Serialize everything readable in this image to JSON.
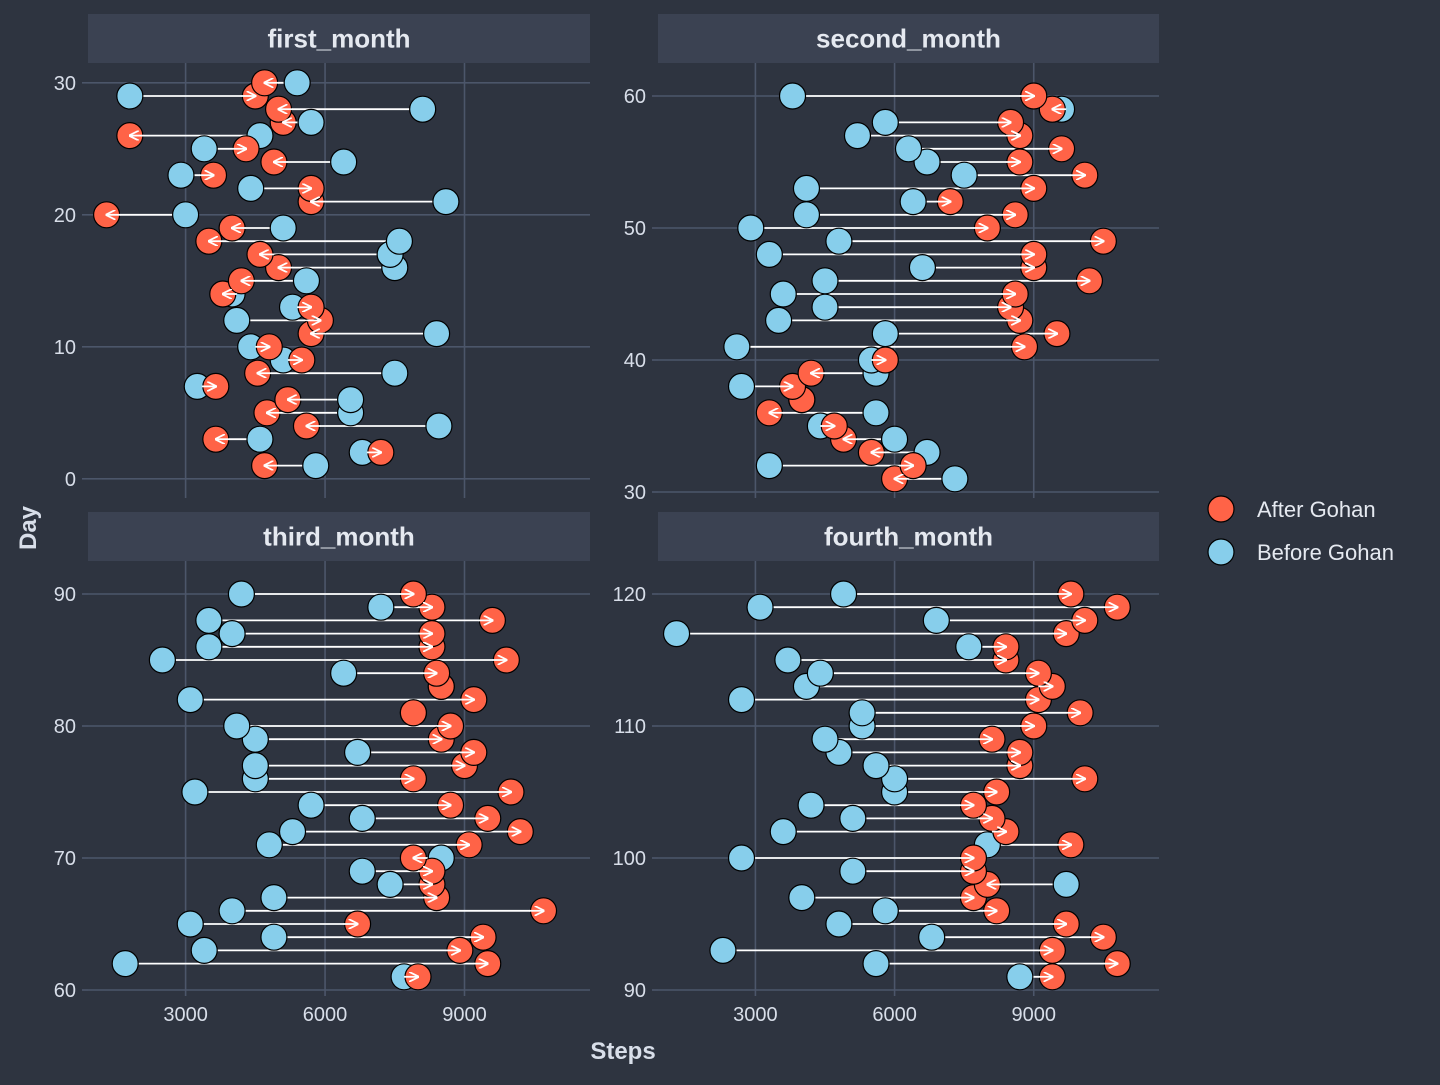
{
  "chart_data": {
    "type": "dumbbell-arrow",
    "xlabel": "Steps",
    "ylabel": "Day",
    "xlim": [
      900,
      11700
    ],
    "x_ticks": [
      3000,
      6000,
      9000
    ],
    "x_tick_labels": [
      "3000",
      "6000",
      "9000"
    ],
    "grid": true,
    "legend": {
      "position": "right",
      "entries": [
        {
          "label": "After Gohan",
          "color": "#ff6347"
        },
        {
          "label": "Before Gohan",
          "color": "#87ceeb"
        }
      ]
    },
    "colors": {
      "background": "#2e3440",
      "strip": "#3b4252",
      "grid": "#4c566a",
      "arrow": "#ffffff",
      "point_outline": "#000000"
    },
    "panels": [
      {
        "title": "first_month",
        "ylim": [
          -1,
          31.5
        ],
        "y_ticks": [
          0,
          10,
          20,
          30
        ],
        "y_tick_labels": [
          "0",
          "10",
          "20",
          "30"
        ],
        "points": [
          {
            "day": 1,
            "before": 5800,
            "after": 4700
          },
          {
            "day": 2,
            "before": 6800,
            "after": 7200
          },
          {
            "day": 3,
            "before": 4600,
            "after": 3650
          },
          {
            "day": 4,
            "before": 8450,
            "after": 5600
          },
          {
            "day": 5,
            "before": 6550,
            "after": 4750
          },
          {
            "day": 6,
            "before": 6550,
            "after": 5200
          },
          {
            "day": 7,
            "before": 3250,
            "after": 3650
          },
          {
            "day": 8,
            "before": 7500,
            "after": 4550
          },
          {
            "day": 9,
            "before": 5100,
            "after": 5500
          },
          {
            "day": 10,
            "before": 4400,
            "after": 4800
          },
          {
            "day": 11,
            "before": 8400,
            "after": 5700
          },
          {
            "day": 12,
            "before": 4100,
            "after": 5900
          },
          {
            "day": 13,
            "before": 5300,
            "after": 5700
          },
          {
            "day": 14,
            "before": 4000,
            "after": 3800
          },
          {
            "day": 15,
            "before": 5600,
            "after": 4200
          },
          {
            "day": 16,
            "before": 7500,
            "after": 5000
          },
          {
            "day": 17,
            "before": 7400,
            "after": 4600
          },
          {
            "day": 18,
            "before": 7600,
            "after": 3500
          },
          {
            "day": 19,
            "before": 5100,
            "after": 4000
          },
          {
            "day": 20,
            "before": 3000,
            "after": 1300
          },
          {
            "day": 21,
            "before": 8600,
            "after": 5700
          },
          {
            "day": 22,
            "before": 4400,
            "after": 5700
          },
          {
            "day": 23,
            "before": 2900,
            "after": 3600
          },
          {
            "day": 24,
            "before": 6400,
            "after": 4900
          },
          {
            "day": 25,
            "before": 3400,
            "after": 4300
          },
          {
            "day": 26,
            "before": 4600,
            "after": 1800
          },
          {
            "day": 27,
            "before": 5700,
            "after": 5100
          },
          {
            "day": 28,
            "before": 8100,
            "after": 5000
          },
          {
            "day": 29,
            "before": 1800,
            "after": 4500
          },
          {
            "day": 30,
            "before": 5400,
            "after": 4700
          }
        ]
      },
      {
        "title": "second_month",
        "ylim": [
          30,
          62.5
        ],
        "y_ticks": [
          30,
          40,
          50,
          60
        ],
        "y_tick_labels": [
          "30",
          "40",
          "50",
          "60"
        ],
        "points": [
          {
            "day": 31,
            "before": 7300,
            "after": 6000
          },
          {
            "day": 32,
            "before": 3300,
            "after": 6400
          },
          {
            "day": 33,
            "before": 6700,
            "after": 5500
          },
          {
            "day": 34,
            "before": 6000,
            "after": 4900
          },
          {
            "day": 35,
            "before": 4400,
            "after": 4700
          },
          {
            "day": 36,
            "before": 5600,
            "after": 3300
          },
          {
            "day": 37,
            "before": 4000,
            "after": 4000
          },
          {
            "day": 38,
            "before": 2700,
            "after": 3800
          },
          {
            "day": 39,
            "before": 5600,
            "after": 4200
          },
          {
            "day": 40,
            "before": 5500,
            "after": 5800
          },
          {
            "day": 41,
            "before": 2600,
            "after": 8800
          },
          {
            "day": 42,
            "before": 5800,
            "after": 9500
          },
          {
            "day": 43,
            "before": 3500,
            "after": 8700
          },
          {
            "day": 44,
            "before": 4500,
            "after": 8500
          },
          {
            "day": 45,
            "before": 3600,
            "after": 8600
          },
          {
            "day": 46,
            "before": 4500,
            "after": 10200
          },
          {
            "day": 47,
            "before": 6600,
            "after": 9000
          },
          {
            "day": 48,
            "before": 3300,
            "after": 9000
          },
          {
            "day": 49,
            "before": 4800,
            "after": 10500
          },
          {
            "day": 50,
            "before": 2900,
            "after": 8000
          },
          {
            "day": 51,
            "before": 4100,
            "after": 8600
          },
          {
            "day": 52,
            "before": 6400,
            "after": 7200
          },
          {
            "day": 53,
            "before": 4100,
            "after": 9000
          },
          {
            "day": 54,
            "before": 7500,
            "after": 10100
          },
          {
            "day": 55,
            "before": 6700,
            "after": 8700
          },
          {
            "day": 56,
            "before": 6300,
            "after": 9600
          },
          {
            "day": 57,
            "before": 5200,
            "after": 8700
          },
          {
            "day": 58,
            "before": 5800,
            "after": 8500
          },
          {
            "day": 59,
            "before": 9600,
            "after": 9400
          },
          {
            "day": 60,
            "before": 3800,
            "after": 9000
          }
        ]
      },
      {
        "title": "third_month",
        "ylim": [
          60,
          92.5
        ],
        "y_ticks": [
          60,
          70,
          80,
          90
        ],
        "y_tick_labels": [
          "60",
          "70",
          "80",
          "90"
        ],
        "points": [
          {
            "day": 61,
            "before": 7700,
            "after": 8000
          },
          {
            "day": 62,
            "before": 1700,
            "after": 9500
          },
          {
            "day": 63,
            "before": 3400,
            "after": 8900
          },
          {
            "day": 64,
            "before": 4900,
            "after": 9400
          },
          {
            "day": 65,
            "before": 3100,
            "after": 6700
          },
          {
            "day": 66,
            "before": 4000,
            "after": 10700
          },
          {
            "day": 67,
            "before": 4900,
            "after": 8400
          },
          {
            "day": 68,
            "before": 7400,
            "after": 8300
          },
          {
            "day": 69,
            "before": 6800,
            "after": 8300
          },
          {
            "day": 70,
            "before": 8500,
            "after": 7900
          },
          {
            "day": 71,
            "before": 4800,
            "after": 9100
          },
          {
            "day": 72,
            "before": 5300,
            "after": 10200
          },
          {
            "day": 73,
            "before": 6800,
            "after": 9500
          },
          {
            "day": 74,
            "before": 5700,
            "after": 8700
          },
          {
            "day": 75,
            "before": 3200,
            "after": 10000
          },
          {
            "day": 76,
            "before": 4500,
            "after": 7900
          },
          {
            "day": 77,
            "before": 4500,
            "after": 9000
          },
          {
            "day": 78,
            "before": 6700,
            "after": 9200
          },
          {
            "day": 79,
            "before": 4500,
            "after": 8500
          },
          {
            "day": 80,
            "before": 4100,
            "after": 8700
          },
          {
            "day": 81,
            "before": 7900,
            "after": 7900
          },
          {
            "day": 82,
            "before": 3100,
            "after": 9200
          },
          {
            "day": 83,
            "before": 8500,
            "after": 8500
          },
          {
            "day": 84,
            "before": 6400,
            "after": 8400
          },
          {
            "day": 85,
            "before": 2500,
            "after": 9900
          },
          {
            "day": 86,
            "before": 3500,
            "after": 8300
          },
          {
            "day": 87,
            "before": 4000,
            "after": 8300
          },
          {
            "day": 88,
            "before": 3500,
            "after": 9600
          },
          {
            "day": 89,
            "before": 7200,
            "after": 8300
          },
          {
            "day": 90,
            "before": 4200,
            "after": 7900
          }
        ]
      },
      {
        "title": "fourth_month",
        "ylim": [
          90,
          122.5
        ],
        "y_ticks": [
          90,
          100,
          110,
          120
        ],
        "y_tick_labels": [
          "90",
          "100",
          "110",
          "120"
        ],
        "points": [
          {
            "day": 91,
            "before": 8700,
            "after": 9400
          },
          {
            "day": 92,
            "before": 5600,
            "after": 10800
          },
          {
            "day": 93,
            "before": 2300,
            "after": 9400
          },
          {
            "day": 94,
            "before": 6800,
            "after": 10500
          },
          {
            "day": 95,
            "before": 4800,
            "after": 9700
          },
          {
            "day": 96,
            "before": 5800,
            "after": 8200
          },
          {
            "day": 97,
            "before": 4000,
            "after": 7700
          },
          {
            "day": 98,
            "before": 9700,
            "after": 8000
          },
          {
            "day": 99,
            "before": 5100,
            "after": 7700
          },
          {
            "day": 100,
            "before": 2700,
            "after": 7700
          },
          {
            "day": 101,
            "before": 8000,
            "after": 9800
          },
          {
            "day": 102,
            "before": 3600,
            "after": 8400
          },
          {
            "day": 103,
            "before": 5100,
            "after": 8100
          },
          {
            "day": 104,
            "before": 4200,
            "after": 7700
          },
          {
            "day": 105,
            "before": 6000,
            "after": 8200
          },
          {
            "day": 106,
            "before": 6000,
            "after": 10100
          },
          {
            "day": 107,
            "before": 5600,
            "after": 8700
          },
          {
            "day": 108,
            "before": 4800,
            "after": 8700
          },
          {
            "day": 109,
            "before": 4500,
            "after": 8100
          },
          {
            "day": 110,
            "before": 5300,
            "after": 9000
          },
          {
            "day": 111,
            "before": 5300,
            "after": 10000
          },
          {
            "day": 112,
            "before": 2700,
            "after": 9100
          },
          {
            "day": 113,
            "before": 4100,
            "after": 9400
          },
          {
            "day": 114,
            "before": 4400,
            "after": 9100
          },
          {
            "day": 115,
            "before": 3700,
            "after": 8400
          },
          {
            "day": 116,
            "before": 7600,
            "after": 8400
          },
          {
            "day": 117,
            "before": 1300,
            "after": 9700
          },
          {
            "day": 118,
            "before": 6900,
            "after": 10100
          },
          {
            "day": 119,
            "before": 3100,
            "after": 10800
          },
          {
            "day": 120,
            "before": 4900,
            "after": 9800
          }
        ]
      }
    ]
  }
}
